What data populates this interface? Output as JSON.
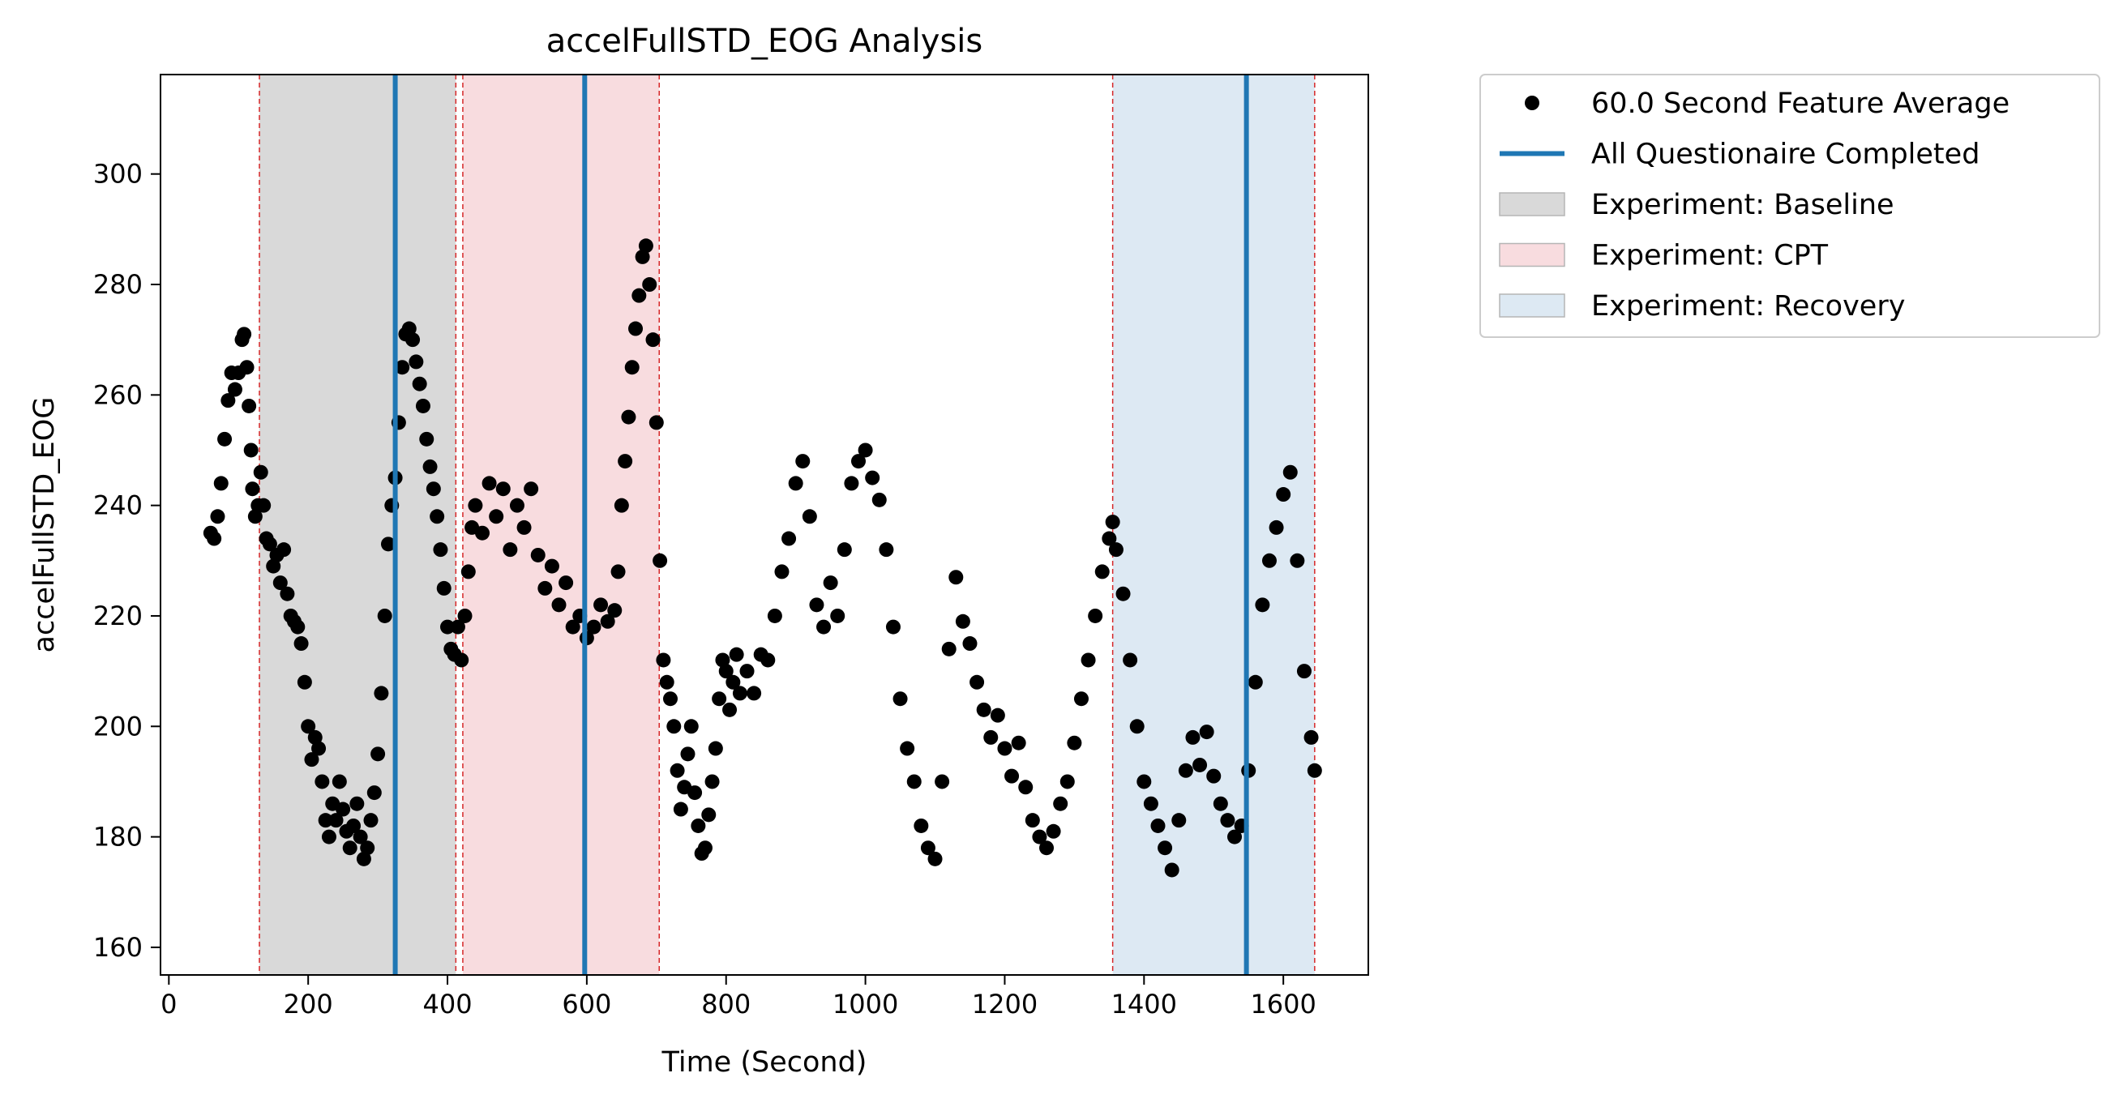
{
  "chart_data": {
    "type": "scatter",
    "title": "accelFullSTD_EOG Analysis",
    "xlabel": "Time (Second)",
    "ylabel": "accelFullSTD_EOG",
    "xlim": [
      -12,
      1722
    ],
    "ylim": [
      155,
      318
    ],
    "xticks": [
      0,
      200,
      400,
      600,
      800,
      1000,
      1200,
      1400,
      1600
    ],
    "yticks": [
      160,
      180,
      200,
      220,
      240,
      260,
      280,
      300
    ],
    "grid": false,
    "legend_position": "outside-upper-right",
    "legend": [
      {
        "label": "60.0 Second Feature Average",
        "kind": "marker",
        "color": "#000000"
      },
      {
        "label": "All Questionaire Completed",
        "kind": "line",
        "color": "#1f77b4"
      },
      {
        "label": "Experiment: Baseline",
        "kind": "patch",
        "color": "#d9d9d9"
      },
      {
        "label": "Experiment: CPT",
        "kind": "patch",
        "color": "#f8dcdf"
      },
      {
        "label": "Experiment: Recovery",
        "kind": "patch",
        "color": "#dde9f3"
      }
    ],
    "regions": [
      {
        "name": "Experiment: Baseline",
        "x0": 130,
        "x1": 412,
        "color": "#d9d9d9"
      },
      {
        "name": "Experiment: CPT",
        "x0": 422,
        "x1": 704,
        "color": "#f8dcdf"
      },
      {
        "name": "Experiment: Recovery",
        "x0": 1355,
        "x1": 1645,
        "color": "#dde9f3"
      }
    ],
    "boundary_lines": [
      130,
      412,
      422,
      704,
      1355,
      1645
    ],
    "boundary_color": "#d62728",
    "questionnaire_lines": [
      325,
      597,
      1547
    ],
    "questionnaire_color": "#1f77b4",
    "series": [
      {
        "name": "60.0 Second Feature Average",
        "color": "#000000",
        "points": [
          [
            60,
            235
          ],
          [
            65,
            234
          ],
          [
            70,
            238
          ],
          [
            75,
            244
          ],
          [
            80,
            252
          ],
          [
            85,
            259
          ],
          [
            90,
            264
          ],
          [
            95,
            261
          ],
          [
            100,
            264
          ],
          [
            105,
            270
          ],
          [
            108,
            271
          ],
          [
            112,
            265
          ],
          [
            115,
            258
          ],
          [
            118,
            250
          ],
          [
            120,
            243
          ],
          [
            124,
            238
          ],
          [
            128,
            240
          ],
          [
            132,
            246
          ],
          [
            136,
            240
          ],
          [
            140,
            234
          ],
          [
            145,
            233
          ],
          [
            150,
            229
          ],
          [
            155,
            231
          ],
          [
            160,
            226
          ],
          [
            165,
            232
          ],
          [
            170,
            224
          ],
          [
            175,
            220
          ],
          [
            180,
            219
          ],
          [
            185,
            218
          ],
          [
            190,
            215
          ],
          [
            195,
            208
          ],
          [
            200,
            200
          ],
          [
            205,
            194
          ],
          [
            210,
            198
          ],
          [
            215,
            196
          ],
          [
            220,
            190
          ],
          [
            225,
            183
          ],
          [
            230,
            180
          ],
          [
            235,
            186
          ],
          [
            240,
            183
          ],
          [
            245,
            190
          ],
          [
            250,
            185
          ],
          [
            255,
            181
          ],
          [
            260,
            178
          ],
          [
            265,
            182
          ],
          [
            270,
            186
          ],
          [
            275,
            180
          ],
          [
            280,
            176
          ],
          [
            285,
            178
          ],
          [
            290,
            183
          ],
          [
            295,
            188
          ],
          [
            300,
            195
          ],
          [
            305,
            206
          ],
          [
            310,
            220
          ],
          [
            315,
            233
          ],
          [
            320,
            240
          ],
          [
            325,
            245
          ],
          [
            330,
            255
          ],
          [
            335,
            265
          ],
          [
            340,
            271
          ],
          [
            345,
            272
          ],
          [
            350,
            270
          ],
          [
            355,
            266
          ],
          [
            360,
            262
          ],
          [
            365,
            258
          ],
          [
            370,
            252
          ],
          [
            375,
            247
          ],
          [
            380,
            243
          ],
          [
            385,
            238
          ],
          [
            390,
            232
          ],
          [
            395,
            225
          ],
          [
            400,
            218
          ],
          [
            405,
            214
          ],
          [
            410,
            213
          ],
          [
            415,
            218
          ],
          [
            420,
            212
          ],
          [
            425,
            220
          ],
          [
            430,
            228
          ],
          [
            435,
            236
          ],
          [
            440,
            240
          ],
          [
            450,
            235
          ],
          [
            460,
            244
          ],
          [
            470,
            238
          ],
          [
            480,
            243
          ],
          [
            490,
            232
          ],
          [
            500,
            240
          ],
          [
            510,
            236
          ],
          [
            520,
            243
          ],
          [
            530,
            231
          ],
          [
            540,
            225
          ],
          [
            550,
            229
          ],
          [
            560,
            222
          ],
          [
            570,
            226
          ],
          [
            580,
            218
          ],
          [
            590,
            220
          ],
          [
            600,
            216
          ],
          [
            610,
            218
          ],
          [
            620,
            222
          ],
          [
            630,
            219
          ],
          [
            640,
            221
          ],
          [
            645,
            228
          ],
          [
            650,
            240
          ],
          [
            655,
            248
          ],
          [
            660,
            256
          ],
          [
            665,
            265
          ],
          [
            670,
            272
          ],
          [
            675,
            278
          ],
          [
            680,
            285
          ],
          [
            685,
            287
          ],
          [
            690,
            280
          ],
          [
            695,
            270
          ],
          [
            700,
            255
          ],
          [
            705,
            230
          ],
          [
            710,
            212
          ],
          [
            715,
            208
          ],
          [
            720,
            205
          ],
          [
            725,
            200
          ],
          [
            730,
            192
          ],
          [
            735,
            185
          ],
          [
            740,
            189
          ],
          [
            745,
            195
          ],
          [
            750,
            200
          ],
          [
            755,
            188
          ],
          [
            760,
            182
          ],
          [
            765,
            177
          ],
          [
            770,
            178
          ],
          [
            775,
            184
          ],
          [
            780,
            190
          ],
          [
            785,
            196
          ],
          [
            790,
            205
          ],
          [
            795,
            212
          ],
          [
            800,
            210
          ],
          [
            805,
            203
          ],
          [
            810,
            208
          ],
          [
            815,
            213
          ],
          [
            820,
            206
          ],
          [
            830,
            210
          ],
          [
            840,
            206
          ],
          [
            850,
            213
          ],
          [
            860,
            212
          ],
          [
            870,
            220
          ],
          [
            880,
            228
          ],
          [
            890,
            234
          ],
          [
            900,
            244
          ],
          [
            910,
            248
          ],
          [
            920,
            238
          ],
          [
            930,
            222
          ],
          [
            940,
            218
          ],
          [
            950,
            226
          ],
          [
            960,
            220
          ],
          [
            970,
            232
          ],
          [
            980,
            244
          ],
          [
            990,
            248
          ],
          [
            1000,
            250
          ],
          [
            1010,
            245
          ],
          [
            1020,
            241
          ],
          [
            1030,
            232
          ],
          [
            1040,
            218
          ],
          [
            1050,
            205
          ],
          [
            1060,
            196
          ],
          [
            1070,
            190
          ],
          [
            1080,
            182
          ],
          [
            1090,
            178
          ],
          [
            1100,
            176
          ],
          [
            1110,
            190
          ],
          [
            1120,
            214
          ],
          [
            1130,
            227
          ],
          [
            1140,
            219
          ],
          [
            1150,
            215
          ],
          [
            1160,
            208
          ],
          [
            1170,
            203
          ],
          [
            1180,
            198
          ],
          [
            1190,
            202
          ],
          [
            1200,
            196
          ],
          [
            1210,
            191
          ],
          [
            1220,
            197
          ],
          [
            1230,
            189
          ],
          [
            1240,
            183
          ],
          [
            1250,
            180
          ],
          [
            1260,
            178
          ],
          [
            1270,
            181
          ],
          [
            1280,
            186
          ],
          [
            1290,
            190
          ],
          [
            1300,
            197
          ],
          [
            1310,
            205
          ],
          [
            1320,
            212
          ],
          [
            1330,
            220
          ],
          [
            1340,
            228
          ],
          [
            1350,
            234
          ],
          [
            1355,
            237
          ],
          [
            1360,
            232
          ],
          [
            1370,
            224
          ],
          [
            1380,
            212
          ],
          [
            1390,
            200
          ],
          [
            1400,
            190
          ],
          [
            1410,
            186
          ],
          [
            1420,
            182
          ],
          [
            1430,
            178
          ],
          [
            1440,
            174
          ],
          [
            1450,
            183
          ],
          [
            1460,
            192
          ],
          [
            1470,
            198
          ],
          [
            1480,
            193
          ],
          [
            1490,
            199
          ],
          [
            1500,
            191
          ],
          [
            1510,
            186
          ],
          [
            1520,
            183
          ],
          [
            1530,
            180
          ],
          [
            1540,
            182
          ],
          [
            1550,
            192
          ],
          [
            1560,
            208
          ],
          [
            1570,
            222
          ],
          [
            1580,
            230
          ],
          [
            1590,
            236
          ],
          [
            1600,
            242
          ],
          [
            1610,
            246
          ],
          [
            1620,
            230
          ],
          [
            1630,
            210
          ],
          [
            1640,
            198
          ],
          [
            1645,
            192
          ]
        ]
      }
    ]
  }
}
